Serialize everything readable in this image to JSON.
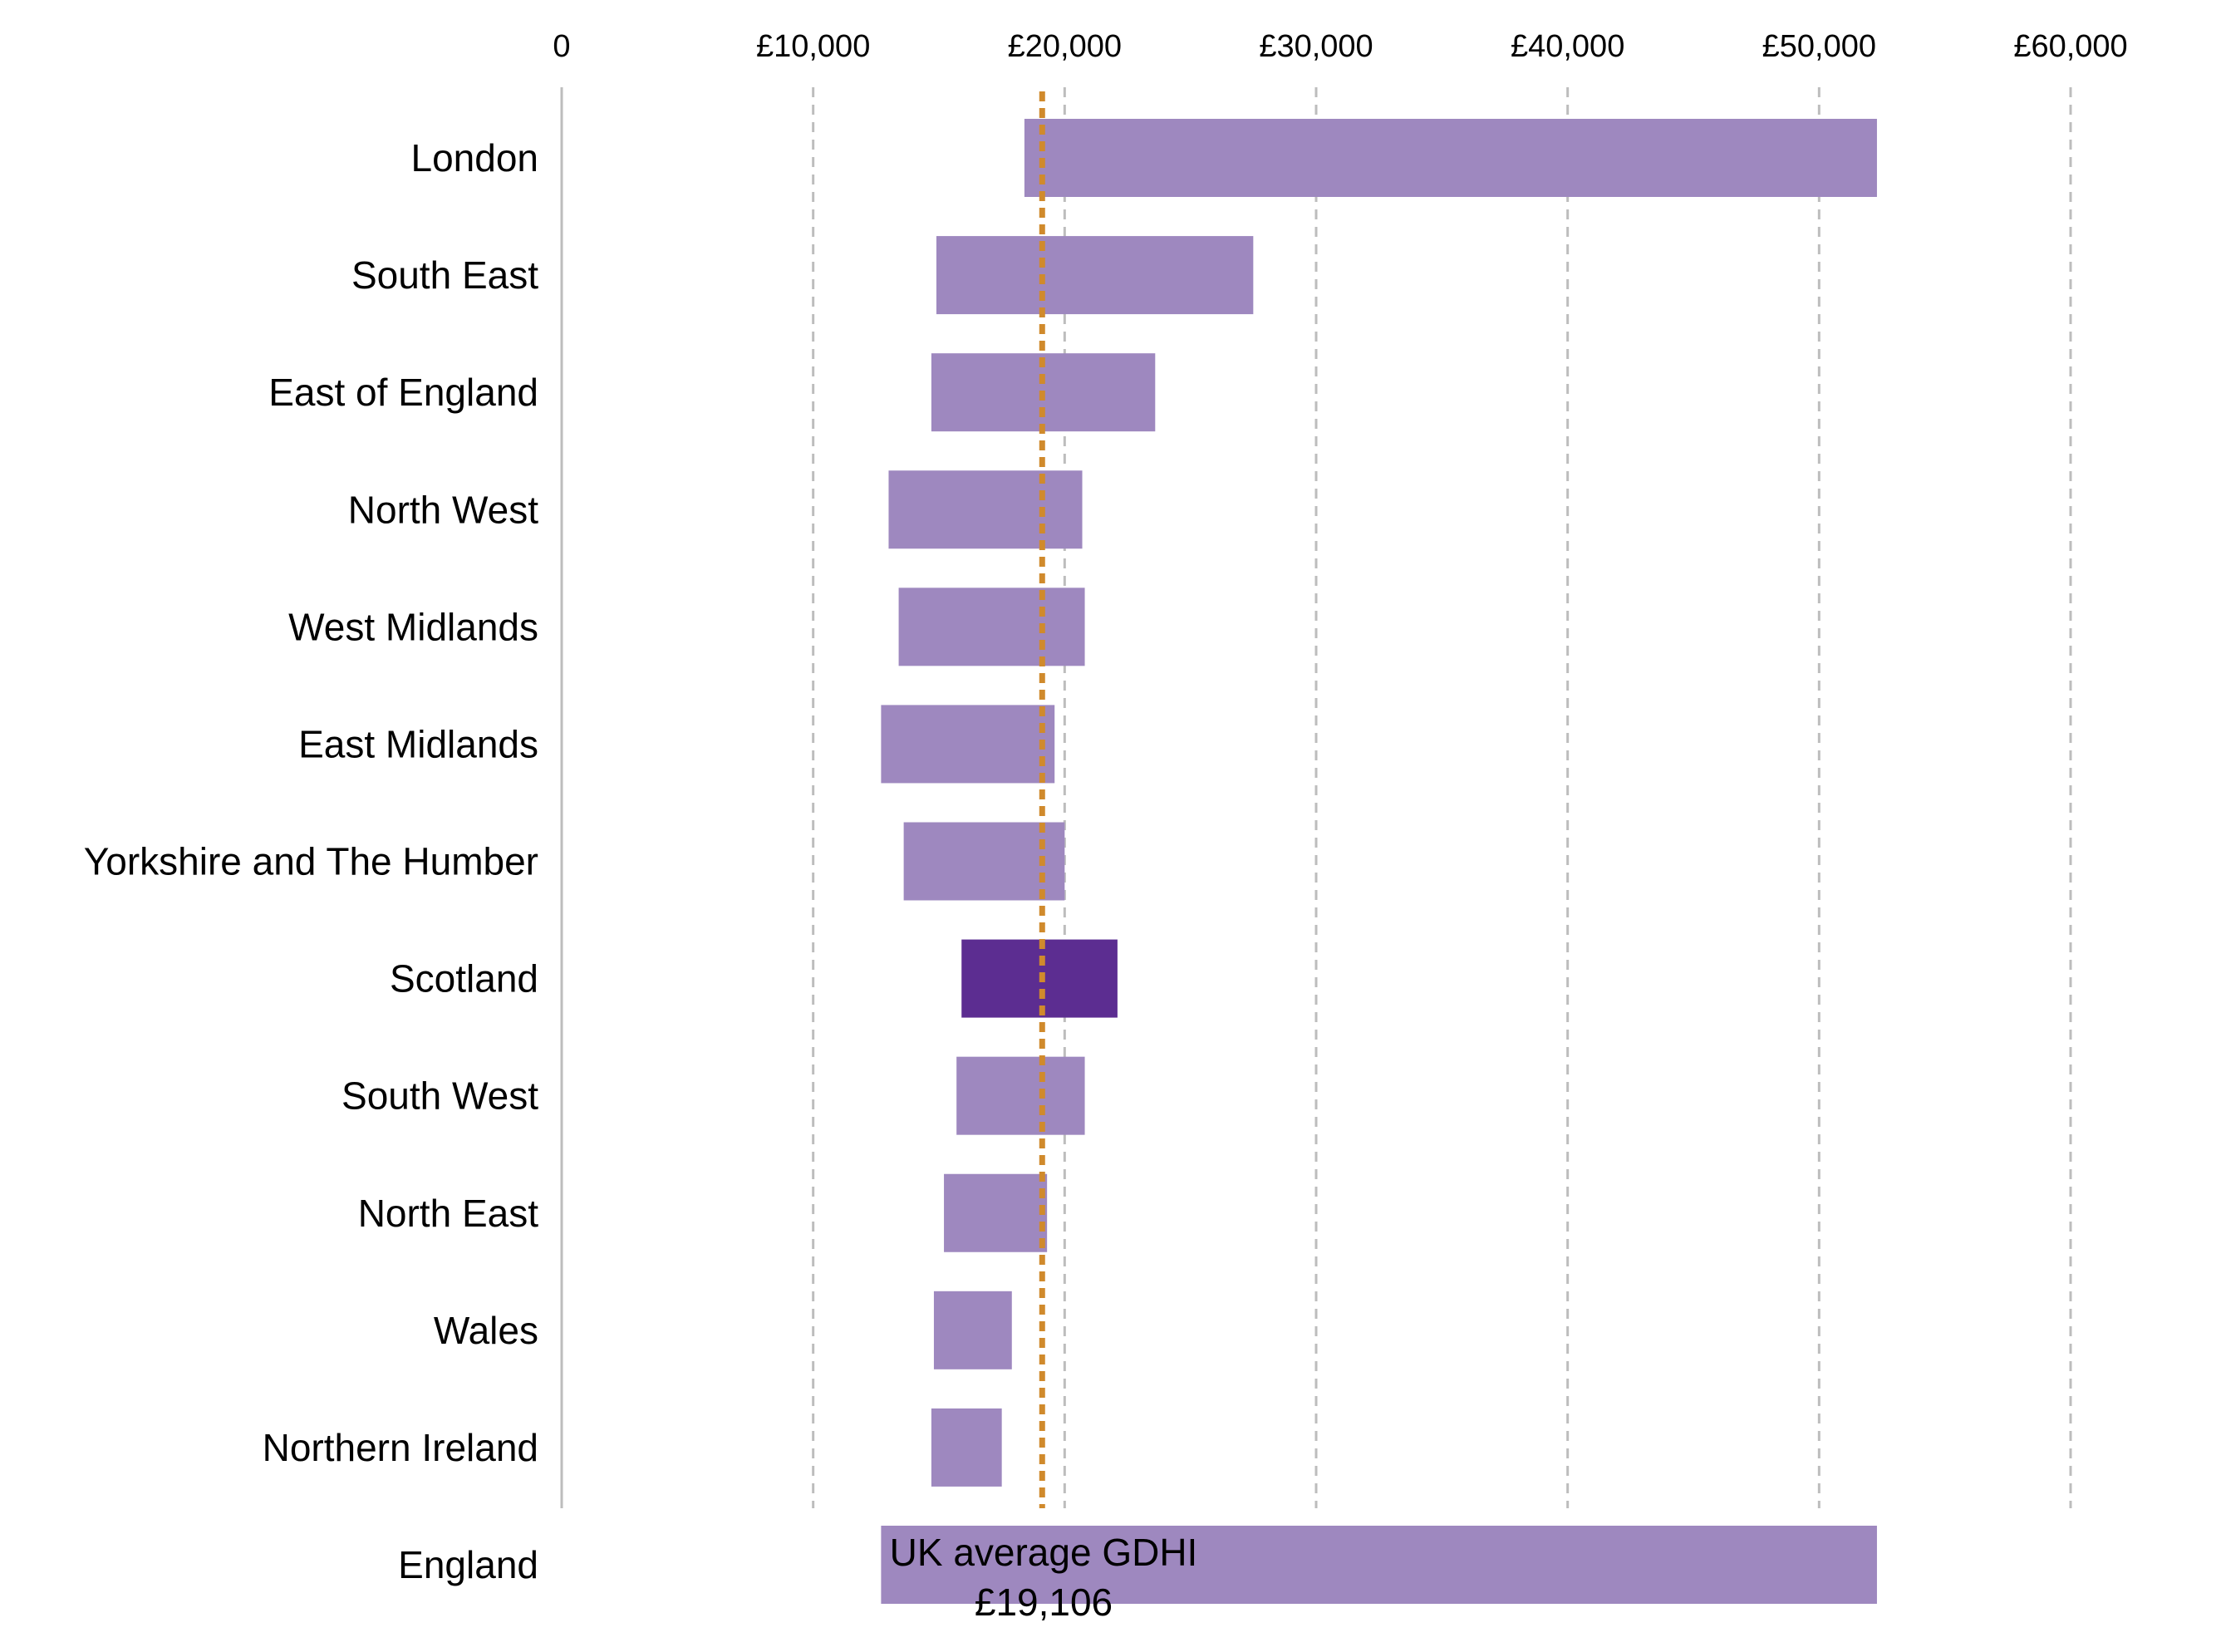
{
  "chart_data": {
    "type": "bar",
    "orientation": "horizontal",
    "subtype": "floating-range",
    "xlim": [
      0,
      60000
    ],
    "x_ticks": [
      0,
      10000,
      20000,
      30000,
      40000,
      50000,
      60000
    ],
    "x_tick_labels": [
      "0",
      "£10,000",
      "£20,000",
      "£30,000",
      "£40,000",
      "£50,000",
      "£60,000"
    ],
    "grid": "vertical-dashed",
    "categories": [
      "London",
      "South East",
      "East of England",
      "North West",
      "West Midlands",
      "East Midlands",
      "Yorkshire and The Humber",
      "Scotland",
      "South West",
      "North East",
      "Wales",
      "Northern Ireland",
      "England"
    ],
    "ranges": [
      [
        18400,
        52300
      ],
      [
        14900,
        27500
      ],
      [
        14700,
        23600
      ],
      [
        13000,
        20700
      ],
      [
        13400,
        20800
      ],
      [
        12700,
        19600
      ],
      [
        13600,
        20000
      ],
      [
        15900,
        22100
      ],
      [
        15700,
        20800
      ],
      [
        15200,
        19300
      ],
      [
        14800,
        17900
      ],
      [
        14700,
        17500
      ],
      [
        12700,
        52300
      ]
    ],
    "highlight_category": "Scotland",
    "reference_line": {
      "value": 19106,
      "label_line1": "UK average GDHI",
      "label_line2": "£19,106"
    },
    "colors": {
      "bar": "#9e88bf",
      "highlight": "#5c2d91",
      "reference": "#d08a2c",
      "grid": "#bdbdbd",
      "axis": "#bdbdbd"
    }
  }
}
